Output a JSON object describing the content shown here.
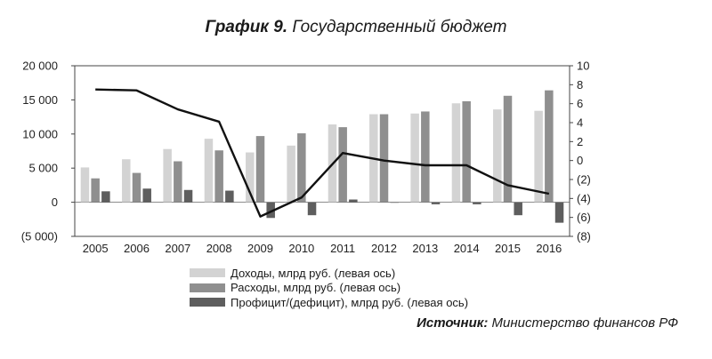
{
  "header": {
    "title_bold": "График 9.",
    "title_rest": "Государственный бюджет"
  },
  "source": {
    "label": "Источник:",
    "text": "Министерство финансов РФ"
  },
  "colors": {
    "revenue": "#d3d3d3",
    "expense": "#8f8f8f",
    "balance": "#5e5e5e",
    "line": "#111111"
  },
  "chart_data": {
    "type": "bar",
    "categories": [
      "2005",
      "2006",
      "2007",
      "2008",
      "2009",
      "2010",
      "2011",
      "2012",
      "2013",
      "2014",
      "2015",
      "2016"
    ],
    "series": [
      {
        "name": "Доходы, млрд руб. (левая ось)",
        "axis": "left",
        "values": [
          5100,
          6300,
          7800,
          9300,
          7300,
          8300,
          11400,
          12900,
          13000,
          14500,
          13600,
          13400
        ]
      },
      {
        "name": "Расходы, млрд руб. (левая ось)",
        "axis": "left",
        "values": [
          3500,
          4300,
          6000,
          7600,
          9700,
          10100,
          11000,
          12900,
          13300,
          14800,
          15600,
          16400
        ]
      },
      {
        "name": "Профицит/(дефицит), млрд руб. (левая ось)",
        "axis": "left",
        "values": [
          1600,
          2000,
          1800,
          1700,
          -2300,
          -1900,
          400,
          0,
          -300,
          -300,
          -1900,
          -3000
        ]
      },
      {
        "name": "",
        "type": "line",
        "axis": "right",
        "values": [
          7.5,
          7.4,
          5.4,
          4.1,
          -5.9,
          -3.9,
          0.8,
          0.0,
          -0.5,
          -0.5,
          -2.6,
          -3.5
        ]
      }
    ],
    "y_left": {
      "ylim": [
        -5000,
        20000
      ],
      "ticks": [
        "(5 000)",
        "0",
        "5 000",
        "10 000",
        "15 000",
        "20 000"
      ],
      "tick_values": [
        -5000,
        0,
        5000,
        10000,
        15000,
        20000
      ]
    },
    "y_right": {
      "ylim": [
        -8,
        10
      ],
      "ticks": [
        "(8)",
        "(6)",
        "(4)",
        "(2)",
        "0",
        "2",
        "4",
        "6",
        "8",
        "10"
      ],
      "tick_values": [
        -8,
        -6,
        -4,
        -2,
        0,
        2,
        4,
        6,
        8,
        10
      ]
    },
    "grid": false,
    "legend": "bottom"
  }
}
